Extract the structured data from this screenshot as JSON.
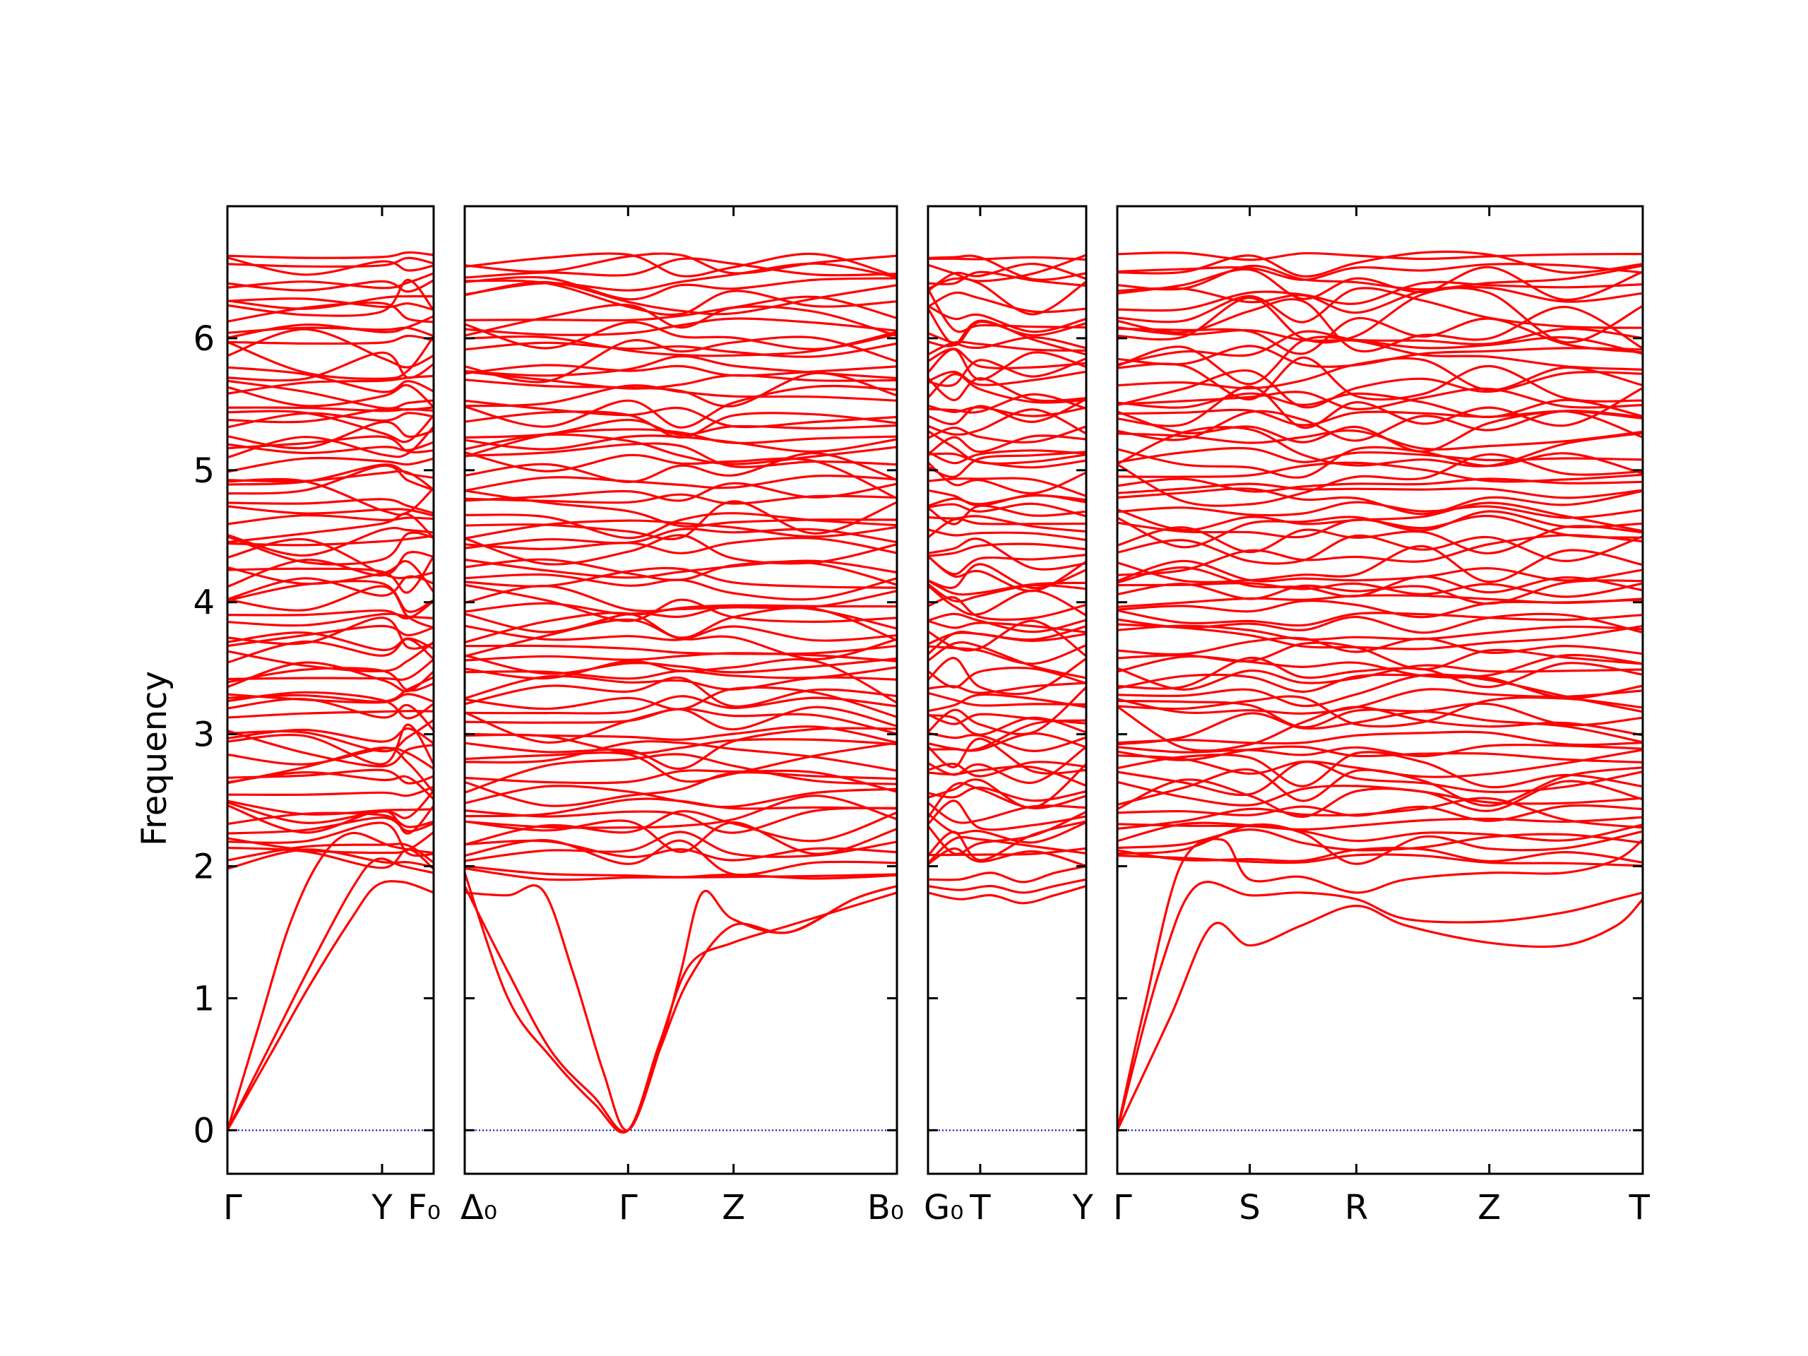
{
  "chart_data": {
    "type": "line",
    "ylabel": "Frequency",
    "ylim": [
      -0.33,
      7.0
    ],
    "yticks": [
      0,
      1,
      2,
      3,
      4,
      5,
      6
    ],
    "line_color": "#ff0000",
    "zero_line_color": "#0000cc",
    "grid": false,
    "legend": "none",
    "panels": [
      {
        "x_labels": [
          "Γ",
          "Y",
          "F₀"
        ],
        "x_ticks": [
          0,
          0.75,
          1.0
        ],
        "acoustic": [
          {
            "x": [
              0,
              0.2,
              0.4,
              0.6,
              0.72,
              0.85,
              1.0
            ],
            "y": [
              0,
              0.55,
              1.1,
              1.6,
              1.85,
              1.88,
              1.8
            ]
          },
          {
            "x": [
              0,
              0.2,
              0.4,
              0.6,
              0.72,
              0.85,
              1.0
            ],
            "y": [
              0,
              0.62,
              1.24,
              1.82,
              2.05,
              2.0,
              1.95
            ]
          },
          {
            "x": [
              0,
              0.15,
              0.3,
              0.45,
              0.6,
              0.8,
              1.0
            ],
            "y": [
              0,
              0.78,
              1.55,
              2.05,
              2.25,
              2.15,
              2.1
            ]
          }
        ],
        "optical_bounds": [
          1.95,
          6.65
        ]
      },
      {
        "x_labels": [
          "Δ₀",
          "Γ",
          "Z",
          "B₀"
        ],
        "x_ticks": [
          0,
          0.378,
          0.622,
          1.0
        ],
        "acoustic": [
          {
            "x": [
              0,
              0.1,
              0.2,
              0.3,
              0.378,
              0.45,
              0.52,
              0.62,
              0.75,
              0.9,
              1.0
            ],
            "y": [
              1.95,
              1.0,
              0.55,
              0.2,
              0,
              0.65,
              1.25,
              1.42,
              1.55,
              1.7,
              1.8
            ]
          },
          {
            "x": [
              0,
              0.1,
              0.2,
              0.3,
              0.378,
              0.45,
              0.52,
              0.62,
              0.75,
              0.9,
              1.0
            ],
            "y": [
              1.85,
              1.2,
              0.6,
              0.25,
              0,
              0.6,
              1.15,
              1.55,
              1.5,
              1.75,
              1.85
            ]
          },
          {
            "x": [
              0,
              0.1,
              0.18,
              0.25,
              0.32,
              0.378,
              0.45,
              0.5,
              0.55,
              0.62,
              0.75,
              0.9,
              1.0
            ],
            "y": [
              1.8,
              1.78,
              1.82,
              1.2,
              0.45,
              0,
              0.6,
              1.2,
              1.8,
              1.6,
              1.5,
              1.75,
              1.85
            ]
          }
        ],
        "optical_bounds": [
          1.9,
          6.65
        ]
      },
      {
        "x_labels": [
          "G₀",
          "T",
          "Y"
        ],
        "x_ticks": [
          0,
          0.33,
          1.0
        ],
        "acoustic": [
          {
            "x": [
              0,
              0.2,
              0.4,
              0.6,
              0.8,
              1.0
            ],
            "y": [
              1.8,
              1.75,
              1.78,
              1.72,
              1.78,
              1.85
            ]
          },
          {
            "x": [
              0,
              0.2,
              0.4,
              0.6,
              0.8,
              1.0
            ],
            "y": [
              1.85,
              1.82,
              1.85,
              1.8,
              1.85,
              1.9
            ]
          },
          {
            "x": [
              0,
              0.2,
              0.4,
              0.6,
              0.8,
              1.0
            ],
            "y": [
              1.9,
              1.9,
              1.95,
              1.88,
              1.95,
              2.0
            ]
          }
        ],
        "optical_bounds": [
          2.0,
          6.65
        ]
      },
      {
        "x_labels": [
          "Γ",
          "S",
          "R",
          "Z",
          "T"
        ],
        "x_ticks": [
          0,
          0.252,
          0.455,
          0.708,
          1.0
        ],
        "acoustic": [
          {
            "x": [
              0,
              0.1,
              0.18,
              0.252,
              0.35,
              0.455,
              0.55,
              0.708,
              0.85,
              0.95,
              1.0
            ],
            "y": [
              0,
              0.85,
              1.55,
              1.4,
              1.55,
              1.7,
              1.55,
              1.42,
              1.4,
              1.55,
              1.75
            ]
          },
          {
            "x": [
              0,
              0.08,
              0.15,
              0.252,
              0.35,
              0.455,
              0.55,
              0.708,
              0.85,
              0.95,
              1.0
            ],
            "y": [
              0,
              1.2,
              1.85,
              1.78,
              1.8,
              1.75,
              1.6,
              1.58,
              1.65,
              1.75,
              1.8
            ]
          },
          {
            "x": [
              0,
              0.05,
              0.12,
              0.2,
              0.252,
              0.35,
              0.455,
              0.55,
              0.708,
              0.85,
              0.95,
              1.0
            ],
            "y": [
              0,
              0.9,
              2.0,
              2.2,
              1.9,
              1.92,
              1.8,
              1.9,
              1.95,
              1.95,
              2.05,
              2.2
            ]
          }
        ],
        "optical_bounds": [
          2.0,
          6.65
        ]
      }
    ],
    "optical_band_count": 80
  }
}
